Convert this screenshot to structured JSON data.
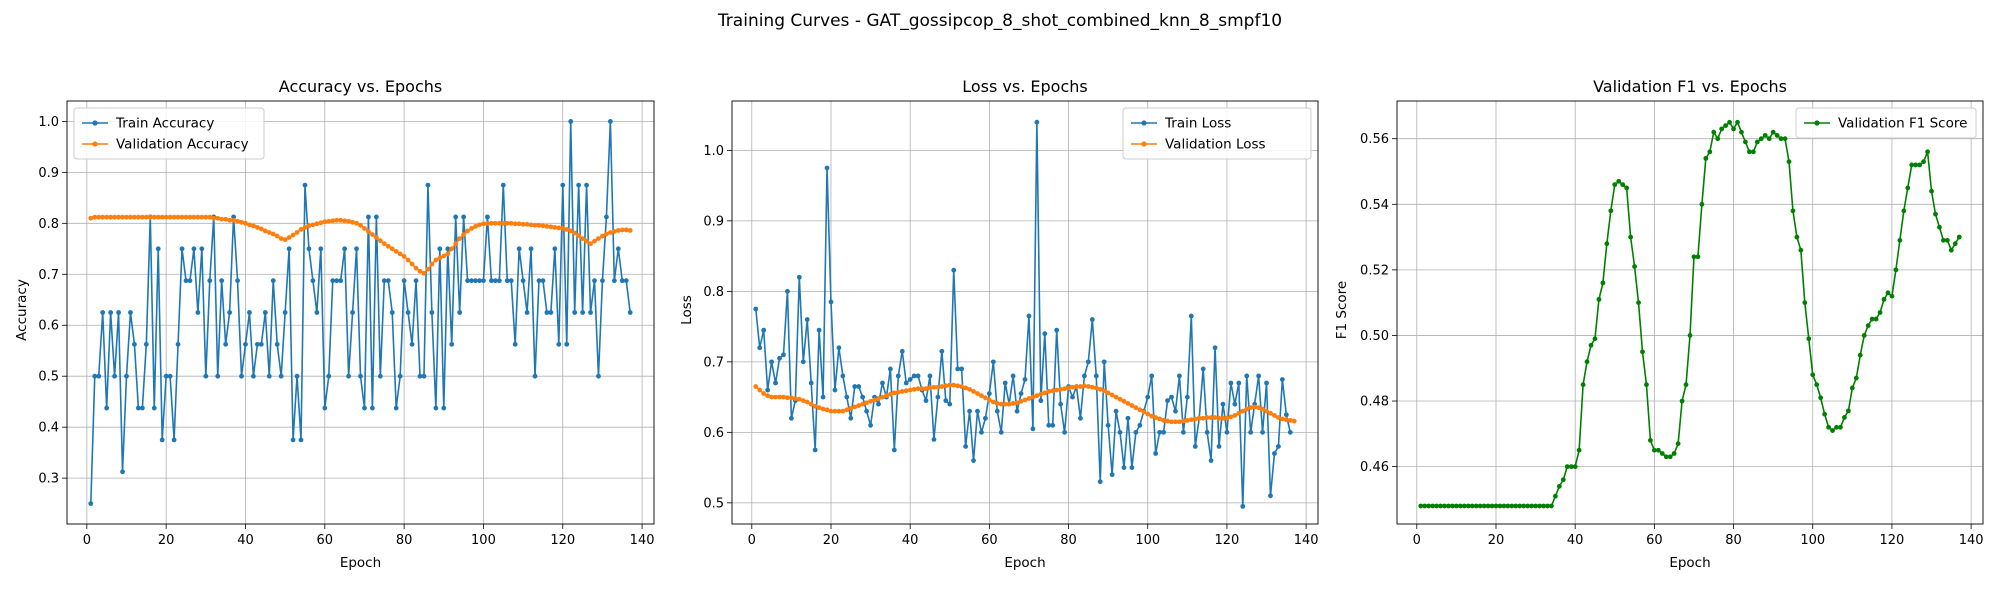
{
  "figure": {
    "suptitle": "Training Curves - GAT_gossipcop_8_shot_combined_knn_8_smpf10"
  },
  "colors": {
    "blue": "#1f77b4",
    "orange": "#ff7f0e",
    "green": "#008000",
    "grid": "#b0b0b0"
  },
  "chart_data": [
    {
      "type": "line",
      "title": "Accuracy vs. Epochs",
      "xlabel": "Epoch",
      "ylabel": "Accuracy",
      "xlim": [
        -5,
        143
      ],
      "ylim": [
        0.21,
        1.04
      ],
      "xticks": [
        0,
        20,
        40,
        60,
        80,
        100,
        120,
        140
      ],
      "yticks": [
        0.3,
        0.4,
        0.5,
        0.6,
        0.7,
        0.8,
        0.9,
        1.0
      ],
      "ytick_labels": [
        "0.3",
        "0.4",
        "0.5",
        "0.6",
        "0.7",
        "0.8",
        "0.9",
        "1.0"
      ],
      "grid": true,
      "legend_position": "upper-left",
      "series": [
        {
          "name": "Train Accuracy",
          "color": "#1f77b4",
          "x_start": 1,
          "values": [
            0.25,
            0.5,
            0.5,
            0.625,
            0.4375,
            0.625,
            0.5,
            0.625,
            0.3125,
            0.5,
            0.625,
            0.5625,
            0.4375,
            0.4375,
            0.5625,
            0.8125,
            0.4375,
            0.75,
            0.375,
            0.5,
            0.5,
            0.375,
            0.5625,
            0.75,
            0.6875,
            0.6875,
            0.75,
            0.625,
            0.75,
            0.5,
            0.6875,
            0.8125,
            0.5,
            0.6875,
            0.5625,
            0.625,
            0.8125,
            0.6875,
            0.5,
            0.5625,
            0.625,
            0.5,
            0.5625,
            0.5625,
            0.625,
            0.5,
            0.6875,
            0.5625,
            0.5,
            0.625,
            0.75,
            0.375,
            0.5,
            0.375,
            0.875,
            0.75,
            0.6875,
            0.625,
            0.75,
            0.4375,
            0.5,
            0.6875,
            0.6875,
            0.6875,
            0.75,
            0.5,
            0.625,
            0.75,
            0.5,
            0.4375,
            0.8125,
            0.4375,
            0.8125,
            0.5,
            0.6875,
            0.6875,
            0.625,
            0.4375,
            0.5,
            0.6875,
            0.625,
            0.5625,
            0.6875,
            0.5,
            0.5,
            0.875,
            0.625,
            0.4375,
            0.75,
            0.4375,
            0.75,
            0.5625,
            0.8125,
            0.625,
            0.8125,
            0.6875,
            0.6875,
            0.6875,
            0.6875,
            0.6875,
            0.8125,
            0.6875,
            0.6875,
            0.6875,
            0.875,
            0.6875,
            0.6875,
            0.5625,
            0.75,
            0.6875,
            0.625,
            0.75,
            0.5,
            0.6875,
            0.6875,
            0.625,
            0.625,
            0.75,
            0.5625,
            0.875,
            0.5625,
            1.0,
            0.625,
            0.875,
            0.625,
            0.875,
            0.625,
            0.6875,
            0.5,
            0.6875,
            0.8125,
            1.0,
            0.6875,
            0.75,
            0.6875,
            0.6875,
            0.625
          ]
        },
        {
          "name": "Validation Accuracy",
          "color": "#ff7f0e",
          "x_start": 1,
          "values": [
            0.81,
            0.812,
            0.812,
            0.812,
            0.812,
            0.812,
            0.812,
            0.812,
            0.812,
            0.812,
            0.812,
            0.812,
            0.812,
            0.812,
            0.812,
            0.812,
            0.812,
            0.812,
            0.812,
            0.812,
            0.812,
            0.812,
            0.812,
            0.812,
            0.812,
            0.812,
            0.812,
            0.812,
            0.812,
            0.812,
            0.812,
            0.81,
            0.81,
            0.808,
            0.808,
            0.806,
            0.806,
            0.804,
            0.802,
            0.8,
            0.797,
            0.795,
            0.792,
            0.789,
            0.785,
            0.782,
            0.779,
            0.775,
            0.77,
            0.768,
            0.772,
            0.777,
            0.782,
            0.788,
            0.792,
            0.795,
            0.797,
            0.799,
            0.801,
            0.803,
            0.804,
            0.805,
            0.806,
            0.806,
            0.805,
            0.804,
            0.802,
            0.8,
            0.796,
            0.79,
            0.784,
            0.778,
            0.772,
            0.766,
            0.76,
            0.755,
            0.75,
            0.745,
            0.74,
            0.735,
            0.728,
            0.72,
            0.712,
            0.706,
            0.702,
            0.71,
            0.72,
            0.728,
            0.732,
            0.736,
            0.74,
            0.75,
            0.76,
            0.77,
            0.778,
            0.785,
            0.79,
            0.794,
            0.797,
            0.799,
            0.8,
            0.8,
            0.8,
            0.8,
            0.8,
            0.8,
            0.8,
            0.799,
            0.799,
            0.798,
            0.798,
            0.797,
            0.796,
            0.796,
            0.795,
            0.794,
            0.793,
            0.792,
            0.791,
            0.79,
            0.788,
            0.785,
            0.781,
            0.776,
            0.77,
            0.765,
            0.76,
            0.765,
            0.77,
            0.775,
            0.779,
            0.782,
            0.784,
            0.786,
            0.787,
            0.787,
            0.786
          ]
        }
      ]
    },
    {
      "type": "line",
      "title": "Loss vs. Epochs",
      "xlabel": "Epoch",
      "ylabel": "Loss",
      "xlim": [
        -5,
        143
      ],
      "ylim": [
        0.47,
        1.07
      ],
      "xticks": [
        0,
        20,
        40,
        60,
        80,
        100,
        120,
        140
      ],
      "yticks": [
        0.5,
        0.6,
        0.7,
        0.8,
        0.9,
        1.0
      ],
      "ytick_labels": [
        "0.5",
        "0.6",
        "0.7",
        "0.8",
        "0.9",
        "1.0"
      ],
      "grid": true,
      "legend_position": "upper-right",
      "series": [
        {
          "name": "Train Loss",
          "color": "#1f77b4",
          "x_start": 1,
          "values": [
            0.775,
            0.72,
            0.745,
            0.66,
            0.7,
            0.67,
            0.705,
            0.71,
            0.8,
            0.62,
            0.645,
            0.82,
            0.7,
            0.76,
            0.67,
            0.575,
            0.745,
            0.65,
            0.975,
            0.785,
            0.66,
            0.72,
            0.68,
            0.65,
            0.62,
            0.665,
            0.665,
            0.65,
            0.63,
            0.61,
            0.65,
            0.64,
            0.67,
            0.65,
            0.69,
            0.575,
            0.68,
            0.715,
            0.67,
            0.675,
            0.68,
            0.68,
            0.66,
            0.645,
            0.68,
            0.59,
            0.65,
            0.715,
            0.645,
            0.64,
            0.83,
            0.69,
            0.69,
            0.58,
            0.63,
            0.56,
            0.63,
            0.6,
            0.62,
            0.655,
            0.7,
            0.63,
            0.6,
            0.67,
            0.64,
            0.68,
            0.63,
            0.655,
            0.675,
            0.765,
            0.605,
            1.04,
            0.645,
            0.74,
            0.61,
            0.61,
            0.745,
            0.64,
            0.6,
            0.665,
            0.65,
            0.665,
            0.62,
            0.68,
            0.7,
            0.76,
            0.68,
            0.53,
            0.7,
            0.61,
            0.54,
            0.63,
            0.6,
            0.55,
            0.62,
            0.55,
            0.6,
            0.61,
            0.63,
            0.65,
            0.68,
            0.57,
            0.6,
            0.6,
            0.645,
            0.65,
            0.63,
            0.68,
            0.6,
            0.65,
            0.765,
            0.58,
            0.62,
            0.69,
            0.6,
            0.56,
            0.72,
            0.58,
            0.64,
            0.6,
            0.67,
            0.64,
            0.67,
            0.495,
            0.68,
            0.6,
            0.64,
            0.68,
            0.6,
            0.67,
            0.51,
            0.57,
            0.58,
            0.675,
            0.625,
            0.6
          ]
        },
        {
          "name": "Validation Loss",
          "color": "#ff7f0e",
          "x_start": 1,
          "values": [
            0.665,
            0.66,
            0.655,
            0.652,
            0.65,
            0.65,
            0.65,
            0.65,
            0.649,
            0.649,
            0.648,
            0.647,
            0.645,
            0.643,
            0.64,
            0.637,
            0.635,
            0.633,
            0.632,
            0.63,
            0.63,
            0.63,
            0.63,
            0.632,
            0.634,
            0.636,
            0.638,
            0.64,
            0.642,
            0.644,
            0.646,
            0.648,
            0.65,
            0.652,
            0.654,
            0.656,
            0.657,
            0.658,
            0.659,
            0.66,
            0.661,
            0.662,
            0.662,
            0.662,
            0.663,
            0.664,
            0.664,
            0.665,
            0.666,
            0.667,
            0.667,
            0.666,
            0.665,
            0.663,
            0.661,
            0.658,
            0.655,
            0.652,
            0.649,
            0.646,
            0.643,
            0.641,
            0.64,
            0.64,
            0.64,
            0.641,
            0.642,
            0.644,
            0.646,
            0.648,
            0.65,
            0.652,
            0.654,
            0.656,
            0.658,
            0.659,
            0.66,
            0.661,
            0.662,
            0.663,
            0.664,
            0.665,
            0.665,
            0.666,
            0.665,
            0.664,
            0.663,
            0.661,
            0.659,
            0.656,
            0.653,
            0.65,
            0.647,
            0.644,
            0.641,
            0.638,
            0.635,
            0.632,
            0.629,
            0.626,
            0.623,
            0.621,
            0.619,
            0.617,
            0.616,
            0.615,
            0.615,
            0.615,
            0.616,
            0.617,
            0.618,
            0.619,
            0.62,
            0.62,
            0.621,
            0.621,
            0.621,
            0.62,
            0.62,
            0.62,
            0.622,
            0.624,
            0.627,
            0.63,
            0.633,
            0.635,
            0.636,
            0.635,
            0.633,
            0.63,
            0.627,
            0.624,
            0.621,
            0.619,
            0.618,
            0.617,
            0.616
          ]
        }
      ]
    },
    {
      "type": "line",
      "title": "Validation F1 vs. Epochs",
      "xlabel": "Epoch",
      "ylabel": "F1 Score",
      "xlim": [
        -5,
        143
      ],
      "ylim": [
        0.4425,
        0.5715
      ],
      "xticks": [
        0,
        20,
        40,
        60,
        80,
        100,
        120,
        140
      ],
      "yticks": [
        0.46,
        0.48,
        0.5,
        0.52,
        0.54,
        0.56
      ],
      "ytick_labels": [
        "0.46",
        "0.48",
        "0.50",
        "0.52",
        "0.54",
        "0.56"
      ],
      "grid": true,
      "legend_position": "upper-right",
      "series": [
        {
          "name": "Validation F1 Score",
          "color": "#008000",
          "x_start": 1,
          "values": [
            0.448,
            0.448,
            0.448,
            0.448,
            0.448,
            0.448,
            0.448,
            0.448,
            0.448,
            0.448,
            0.448,
            0.448,
            0.448,
            0.448,
            0.448,
            0.448,
            0.448,
            0.448,
            0.448,
            0.448,
            0.448,
            0.448,
            0.448,
            0.448,
            0.448,
            0.448,
            0.448,
            0.448,
            0.448,
            0.448,
            0.448,
            0.448,
            0.448,
            0.448,
            0.451,
            0.454,
            0.456,
            0.46,
            0.46,
            0.46,
            0.465,
            0.485,
            0.492,
            0.497,
            0.499,
            0.511,
            0.516,
            0.528,
            0.538,
            0.546,
            0.547,
            0.546,
            0.545,
            0.53,
            0.521,
            0.51,
            0.495,
            0.485,
            0.468,
            0.465,
            0.465,
            0.464,
            0.463,
            0.463,
            0.464,
            0.467,
            0.48,
            0.485,
            0.5,
            0.524,
            0.524,
            0.54,
            0.554,
            0.556,
            0.562,
            0.56,
            0.563,
            0.564,
            0.565,
            0.563,
            0.565,
            0.562,
            0.559,
            0.556,
            0.556,
            0.559,
            0.56,
            0.561,
            0.56,
            0.562,
            0.561,
            0.56,
            0.56,
            0.553,
            0.538,
            0.53,
            0.526,
            0.51,
            0.499,
            0.488,
            0.485,
            0.481,
            0.476,
            0.472,
            0.471,
            0.472,
            0.472,
            0.475,
            0.477,
            0.484,
            0.487,
            0.494,
            0.5,
            0.503,
            0.505,
            0.505,
            0.507,
            0.511,
            0.513,
            0.512,
            0.52,
            0.529,
            0.538,
            0.545,
            0.552,
            0.552,
            0.552,
            0.553,
            0.556,
            0.544,
            0.537,
            0.533,
            0.529,
            0.529,
            0.526,
            0.528,
            0.53
          ]
        }
      ]
    }
  ]
}
